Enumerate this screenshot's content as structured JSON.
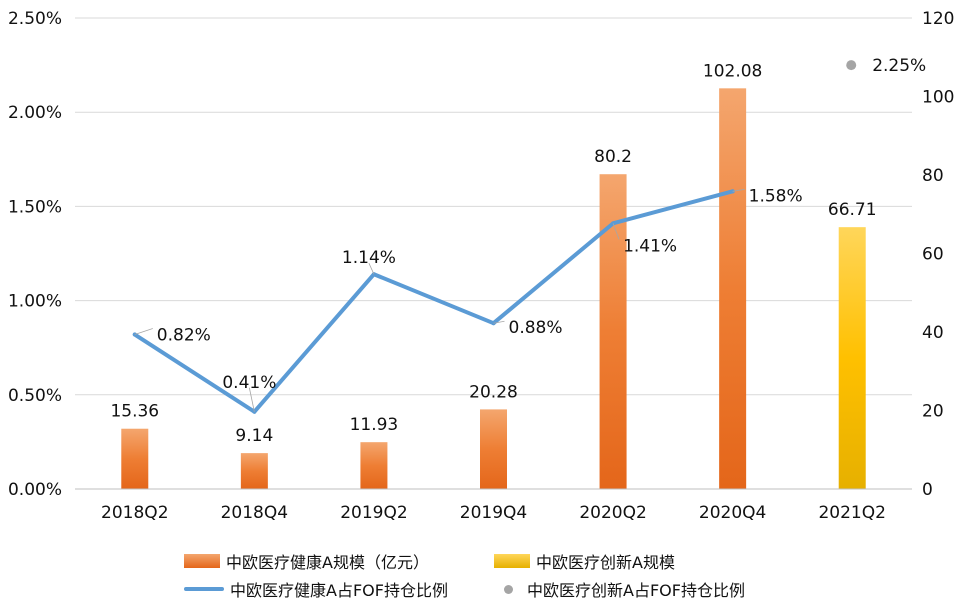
{
  "chart_data": {
    "type": "bar+line",
    "categories": [
      "2018Q2",
      "2018Q4",
      "2019Q2",
      "2019Q4",
      "2020Q2",
      "2020Q4",
      "2021Q2"
    ],
    "bar_series": [
      {
        "name": "中欧医疗健康A规模（亿元）",
        "values": [
          15.36,
          9.14,
          11.93,
          20.28,
          80.2,
          102.08,
          null
        ],
        "labels": [
          "15.36",
          "9.14",
          "11.93",
          "20.28",
          "80.2",
          "102.08",
          null
        ],
        "color": "#ED7D31"
      },
      {
        "name": "中欧医疗创新A规模",
        "values": [
          null,
          null,
          null,
          null,
          null,
          null,
          66.71
        ],
        "labels": [
          null,
          null,
          null,
          null,
          null,
          null,
          "66.71"
        ],
        "color": "#FFC000"
      }
    ],
    "line_series": [
      {
        "name": "中欧医疗健康A占FOF持仓比例",
        "values": [
          0.82,
          0.41,
          1.14,
          0.88,
          1.41,
          1.58,
          null
        ],
        "labels": [
          "0.82%",
          "0.41%",
          "1.14%",
          "0.88%",
          "1.41%",
          "1.58%",
          null
        ],
        "color": "#5B9BD5"
      },
      {
        "name": "中欧医疗创新A占FOF持仓比例",
        "values": [
          null,
          null,
          null,
          null,
          null,
          null,
          2.25
        ],
        "labels": [
          null,
          null,
          null,
          null,
          null,
          null,
          "2.25%"
        ],
        "color": "#A5A5A5"
      }
    ],
    "y_left": {
      "ticks": [
        "0.00%",
        "0.50%",
        "1.00%",
        "1.50%",
        "2.00%",
        "2.50%"
      ],
      "ylim": [
        0,
        2.5
      ]
    },
    "y_right": {
      "ticks": [
        "0",
        "20",
        "40",
        "60",
        "80",
        "100",
        "120"
      ],
      "ylim": [
        0,
        120
      ]
    },
    "grid": true,
    "legend_position": "bottom"
  },
  "legend": {
    "bar1": "中欧医疗健康A规模（亿元）",
    "bar2": "中欧医疗创新A规模",
    "line1": "中欧医疗健康A占FOF持仓比例",
    "dot1": "中欧医疗创新A占FOF持仓比例"
  }
}
